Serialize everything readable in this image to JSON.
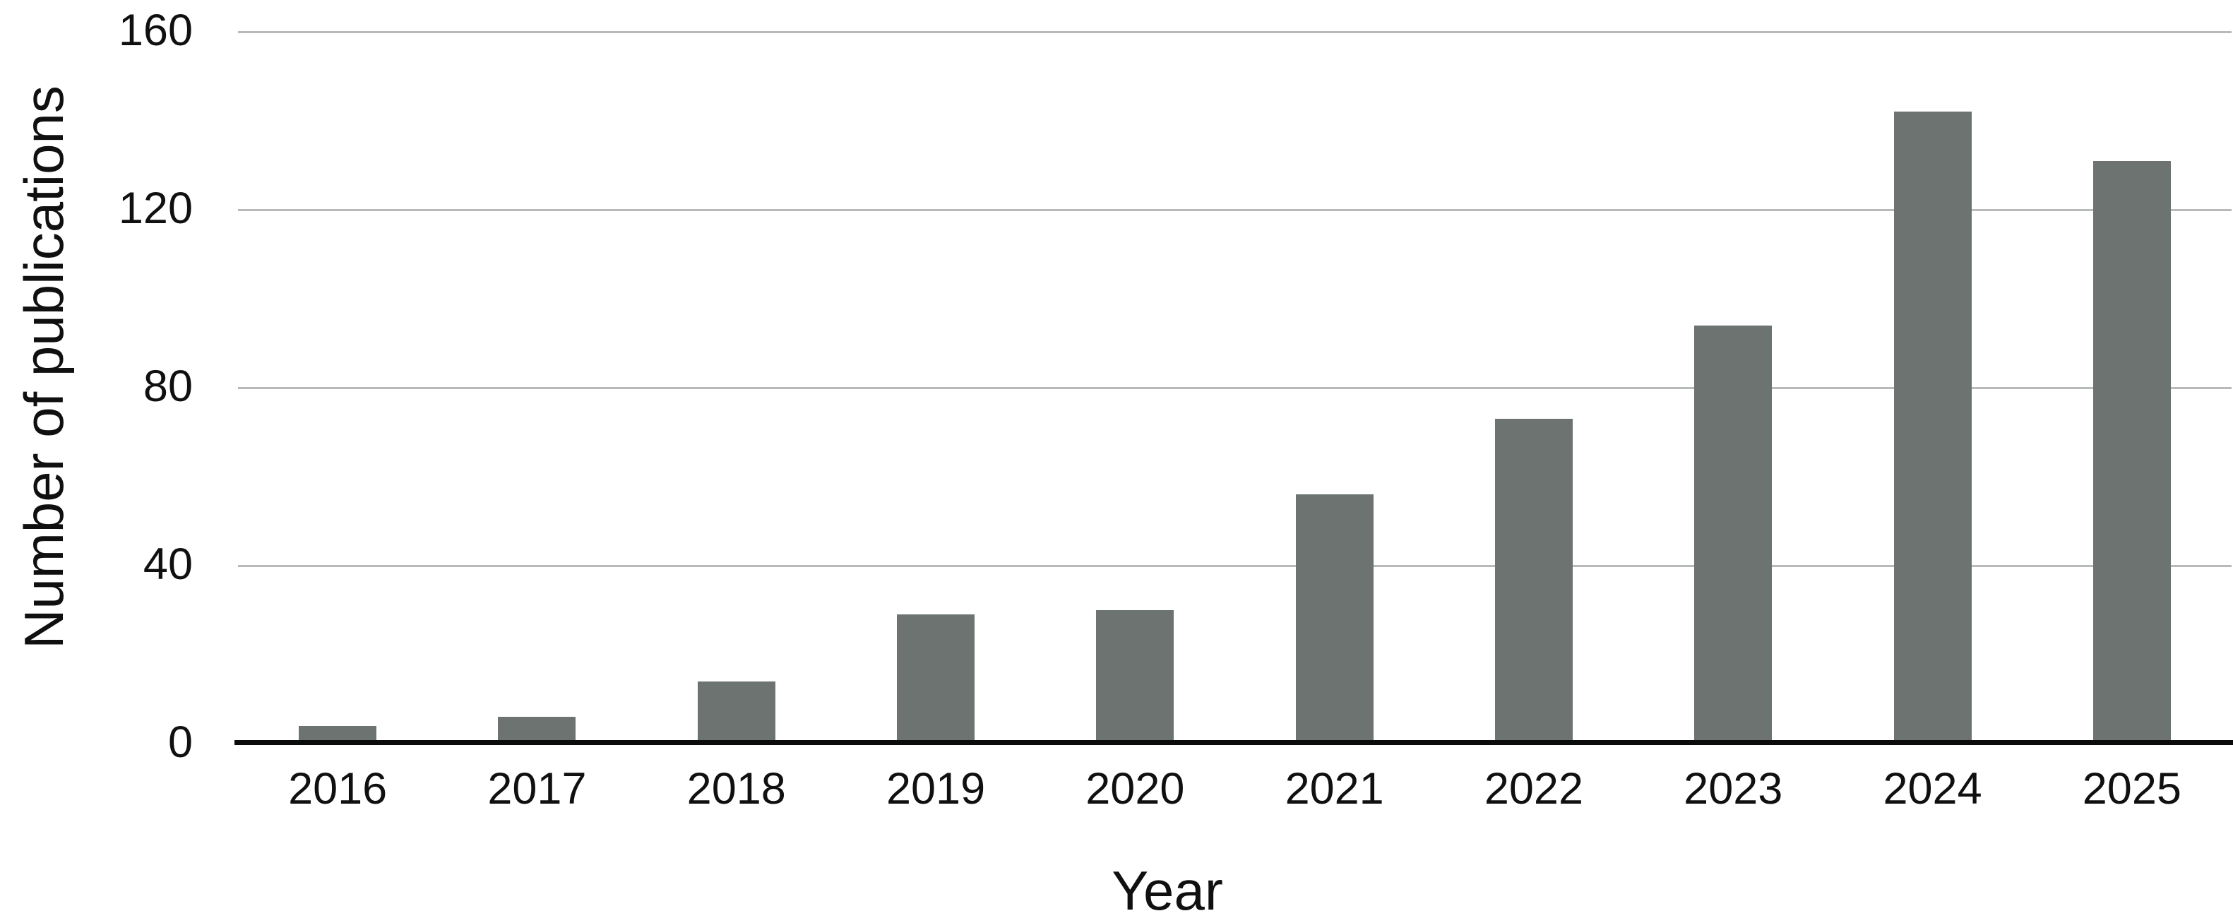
{
  "chart_data": {
    "type": "bar",
    "title": "",
    "xlabel": "Year",
    "ylabel": "Number of publications",
    "categories": [
      "2016",
      "2017",
      "2018",
      "2019",
      "2020",
      "2021",
      "2022",
      "2023",
      "2024",
      "2025"
    ],
    "values": [
      4,
      6,
      14,
      29,
      30,
      56,
      73,
      94,
      142,
      131
    ],
    "ylim": [
      0,
      160
    ],
    "yticks": [
      0,
      40,
      80,
      120,
      160
    ],
    "grid": true,
    "legend_position": "none",
    "bar_color": "#6d7371",
    "gridline_color": "#b8bab8",
    "axis_line_color": "#0b0b0b",
    "text_color": "#101010",
    "background_color": "#ffffff"
  }
}
